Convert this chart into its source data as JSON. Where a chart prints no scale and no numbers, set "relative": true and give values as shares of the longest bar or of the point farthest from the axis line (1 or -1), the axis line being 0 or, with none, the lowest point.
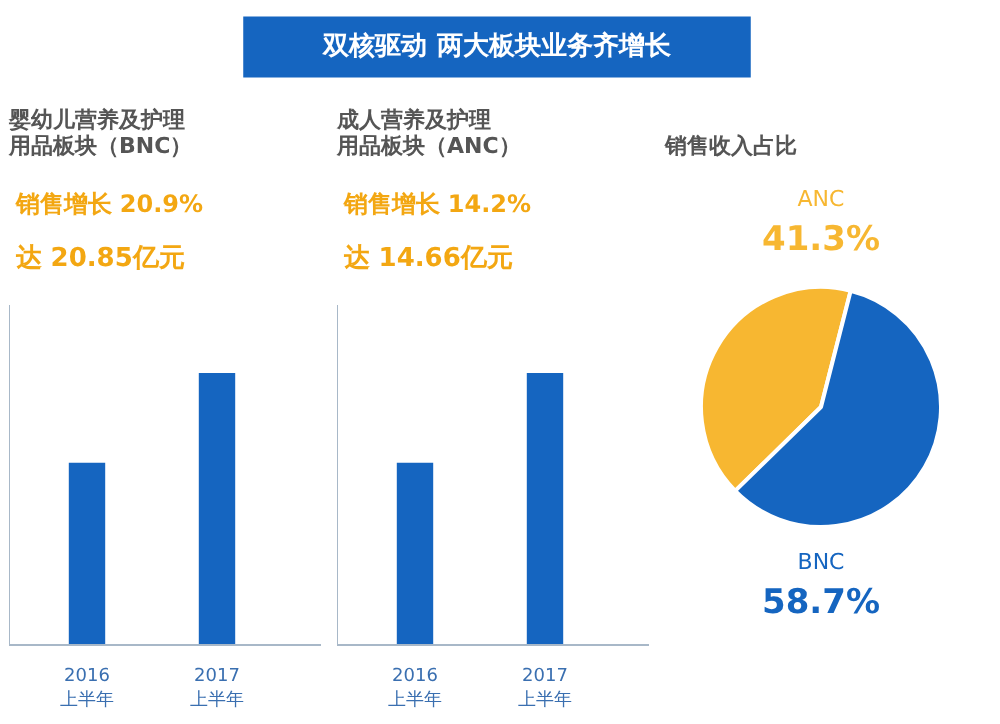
{
  "chart_data": [
    {
      "type": "other",
      "title": "双核驱动 两大板块业务齐增长"
    },
    {
      "type": "bar",
      "title": "婴幼儿营养及护理用品板块（BNC）",
      "annotations": [
        "销售增长 20.9%",
        "达 20.85亿元"
      ],
      "categories": [
        "2016\n上半年",
        "2017\n上半年"
      ],
      "values": [
        0.67,
        1
      ],
      "color": "#1565c0",
      "relative": true,
      "grid": false
    },
    {
      "type": "bar",
      "title": "成人营养及护理用品板块（ANC）",
      "annotations": [
        "销售增长 14.2%",
        "达 14.66亿元"
      ],
      "categories": [
        "2016\n上半年",
        "2017\n上半年"
      ],
      "values": [
        0.67,
        1
      ],
      "color": "#1565c0",
      "relative": true,
      "grid": false
    },
    {
      "type": "pie",
      "title": "销售收入占比",
      "categories": [
        "ANC",
        "BNC"
      ],
      "values": [
        41.3,
        58.7
      ],
      "value_labels": [
        "41.3%",
        "58.7%"
      ],
      "colors": [
        "#f7b731",
        "#1565c0"
      ],
      "data_labels": true
    }
  ]
}
